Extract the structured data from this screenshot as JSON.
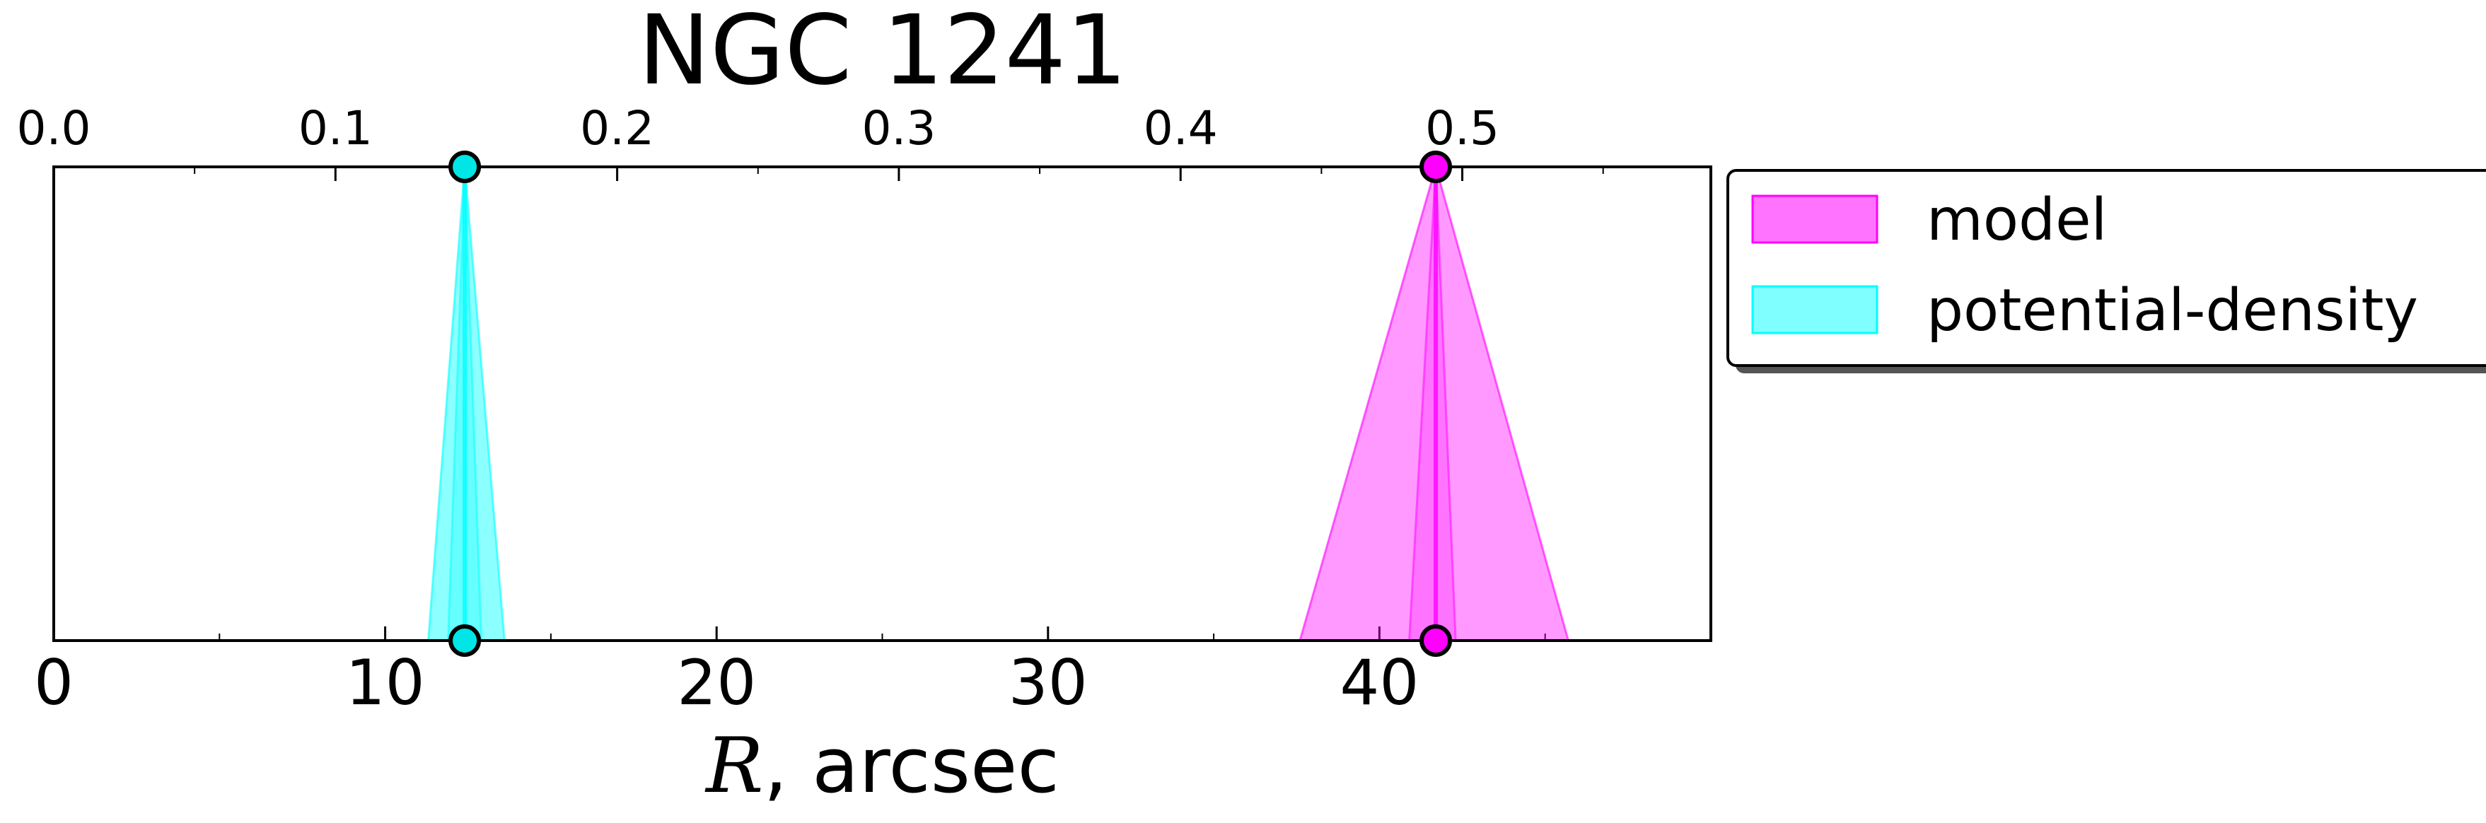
{
  "chart_data": {
    "type": "area",
    "title": "NGC 1241",
    "xlabel_var": "R",
    "xlabel_rest": ", arcsec",
    "xlim": [
      0,
      50
    ],
    "ylim": [
      0,
      1
    ],
    "x_ticks": [
      0,
      10,
      20,
      30,
      40
    ],
    "x_tick_labels": [
      "0",
      "10",
      "20",
      "30",
      "40"
    ],
    "top_axis": {
      "ticks": [
        0.0,
        0.1,
        0.2,
        0.3,
        0.4,
        0.5
      ],
      "tick_labels": [
        "0.0",
        "0.1",
        "0.2",
        "0.3",
        "0.4",
        "0.5"
      ],
      "data_per_top_unit": 85.0
    },
    "grid": false,
    "legend_position": "right",
    "series": [
      {
        "name": "model",
        "color": "#ff00ff",
        "fill_opacity": 0.4,
        "peak_x": 41.7,
        "base_x": [
          37.6,
          45.7
        ],
        "mid_band_x": [
          40.9,
          42.3
        ],
        "peak_y": 1.0
      },
      {
        "name": "potential-density",
        "color": "#00ffff",
        "fill_opacity": 0.45,
        "peak_x": 12.4,
        "base_x": [
          11.3,
          13.6
        ],
        "mid_band_x": [
          11.9,
          12.9
        ],
        "peak_y": 1.0
      }
    ],
    "marker_color_model": "#ff00ff",
    "marker_color_potential": "#00e5e5"
  }
}
